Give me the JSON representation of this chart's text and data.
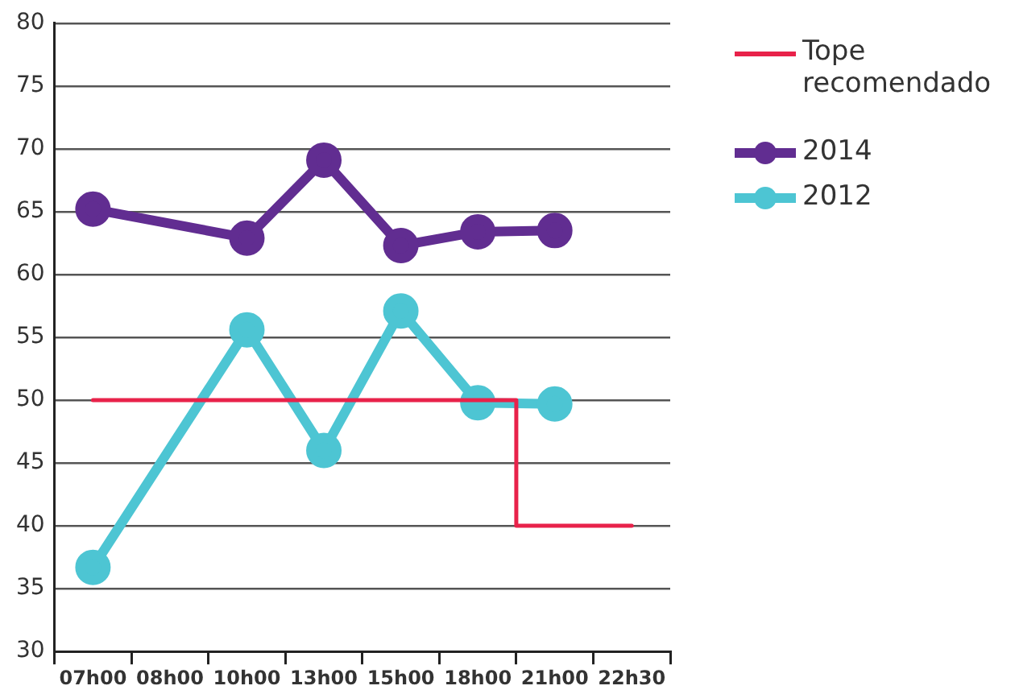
{
  "chart_data": {
    "type": "line",
    "categories": [
      "07h00",
      "08h00",
      "10h00",
      "13h00",
      "15h00",
      "18h00",
      "21h00",
      "22h30"
    ],
    "series": [
      {
        "name": "Tope recomendado",
        "type": "step",
        "marker": "none",
        "color": "#e8224a",
        "values": [
          50,
          50,
          50,
          50,
          50,
          50,
          40,
          40
        ]
      },
      {
        "name": "2014",
        "color": "#612d91",
        "marker": "circle",
        "values": [
          65.2,
          null,
          62.9,
          69.1,
          62.3,
          63.4,
          63.5,
          null
        ]
      },
      {
        "name": "2012",
        "color": "#4dc5d3",
        "marker": "circle",
        "values": [
          36.7,
          null,
          55.6,
          46,
          57.1,
          49.8,
          49.7,
          null
        ]
      }
    ],
    "ylim": [
      30,
      80
    ],
    "yticks": [
      30,
      35,
      40,
      45,
      50,
      55,
      60,
      65,
      70,
      75,
      80
    ],
    "grid": "y",
    "legend": "right"
  }
}
